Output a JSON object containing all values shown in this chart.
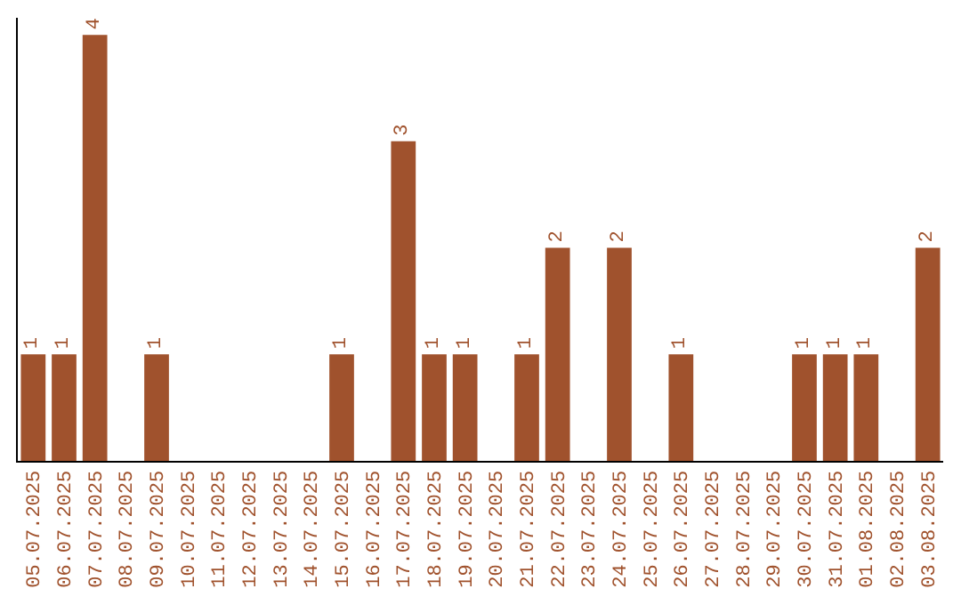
{
  "chart_data": {
    "type": "bar",
    "categories": [
      "05.07.2025",
      "06.07.2025",
      "07.07.2025",
      "08.07.2025",
      "09.07.2025",
      "10.07.2025",
      "11.07.2025",
      "12.07.2025",
      "13.07.2025",
      "14.07.2025",
      "15.07.2025",
      "16.07.2025",
      "17.07.2025",
      "18.07.2025",
      "19.07.2025",
      "20.07.2025",
      "21.07.2025",
      "22.07.2025",
      "23.07.2025",
      "24.07.2025",
      "25.07.2025",
      "26.07.2025",
      "27.07.2025",
      "28.07.2025",
      "29.07.2025",
      "30.07.2025",
      "31.07.2025",
      "01.08.2025",
      "02.08.2025",
      "03.08.2025"
    ],
    "values": [
      1,
      1,
      4,
      0,
      1,
      0,
      0,
      0,
      0,
      0,
      1,
      0,
      3,
      1,
      1,
      0,
      1,
      2,
      0,
      2,
      0,
      1,
      0,
      0,
      0,
      1,
      1,
      1,
      0,
      2
    ],
    "value_labels": [
      "1",
      "1",
      "4",
      null,
      "1",
      null,
      null,
      null,
      null,
      null,
      "1",
      null,
      "3",
      "1",
      "1",
      null,
      "1",
      "2",
      null,
      "2",
      null,
      "1",
      null,
      null,
      null,
      "1",
      "1",
      "1",
      null,
      "2"
    ],
    "color": "#a0522d",
    "ylim": [
      0,
      4.16
    ],
    "tick_labels": "x",
    "legend": false
  }
}
